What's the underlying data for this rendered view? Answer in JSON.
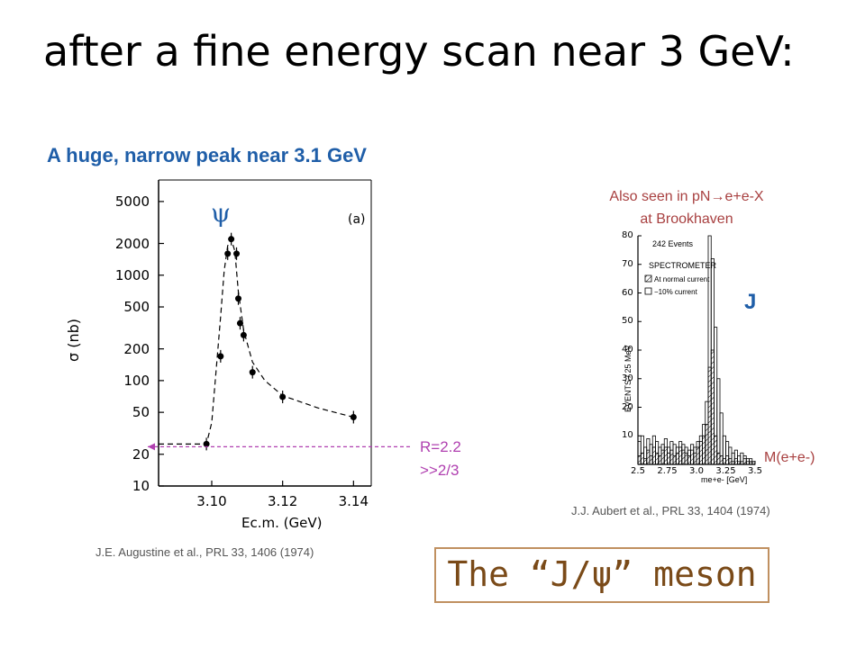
{
  "slide": {
    "title": "after a fine energy scan near 3 GeV:",
    "subtitle": "A huge, narrow peak near 3.1 GeV",
    "psi_symbol": "ψ",
    "panel_tag": "(a)",
    "r_line1": "R=2.2",
    "r_line2": ">>2/3",
    "ref_left": "J.E. Augustine et al., PRL 33, 1406 (1974)",
    "also_seen_line1": "Also seen in pN→e+e-X",
    "also_seen_line2": "at Brookhaven",
    "j_symbol": "J",
    "mee_label": "M(e+e-)",
    "ref_right": "J.J. Aubert et al., PRL 33, 1404 (1974)",
    "meson_label": "The “J/ψ” meson"
  },
  "colors": {
    "subtitle": "#1f5ea8",
    "annotation_pink": "#b040b0",
    "annotation_red": "#a84040",
    "meson_text": "#7a4a18",
    "meson_border": "#c09060"
  },
  "chart_data": [
    {
      "type": "scatter",
      "scale": "log-y",
      "xlabel": "Ec.m. (GeV)",
      "ylabel": "σ (nb)",
      "xlim": [
        3.085,
        3.145
      ],
      "ylim": [
        10,
        8000
      ],
      "x_ticks": [
        "3.10",
        "3.12",
        "3.14"
      ],
      "y_ticks": [
        "5000",
        "2000",
        "1000",
        "500",
        "200",
        "100",
        "50",
        "20",
        "10"
      ],
      "y_tick_values": [
        5000,
        2000,
        1000,
        500,
        200,
        100,
        50,
        20,
        10
      ],
      "series": [
        {
          "x": [
            3.0985,
            3.1025,
            3.1045,
            3.1055,
            3.107,
            3.1075,
            3.108,
            3.109,
            3.1115,
            3.12,
            3.14
          ],
          "y": [
            25,
            170,
            1600,
            2200,
            1600,
            600,
            350,
            270,
            120,
            70,
            45
          ]
        }
      ],
      "curve": {
        "x": [
          3.085,
          3.096,
          3.0985,
          3.1,
          3.101,
          3.1025,
          3.1035,
          3.1045,
          3.1055,
          3.1065,
          3.1075,
          3.109,
          3.1115,
          3.115,
          3.12,
          3.13,
          3.14
        ],
        "y": [
          25,
          25,
          25,
          40,
          100,
          400,
          1100,
          1900,
          2200,
          1700,
          700,
          300,
          150,
          100,
          72,
          55,
          45
        ]
      },
      "reference_line": {
        "y": 25,
        "label": "R=2.2"
      }
    },
    {
      "type": "bar",
      "xlabel": "me+e- [GeV]",
      "ylabel": "EVENTS / 25 MeV",
      "xlim": [
        2.5,
        3.5
      ],
      "ylim": [
        0,
        80
      ],
      "x_ticks": [
        "2.5",
        "2.75",
        "3.0",
        "3.25",
        "3.5"
      ],
      "y_ticks": [
        "80",
        "70",
        "60",
        "50",
        "40",
        "30",
        "20",
        "10"
      ],
      "y_tick_values": [
        80,
        70,
        60,
        50,
        40,
        30,
        20,
        10
      ],
      "annotations": [
        "242 Events",
        "SPECTROMETER",
        "At normal current",
        "−10% current"
      ],
      "series": [
        {
          "name": "At normal current",
          "bin_start": 2.5,
          "bin_width": 0.025,
          "values": [
            3,
            4,
            2,
            5,
            3,
            6,
            4,
            3,
            5,
            6,
            4,
            5,
            3,
            4,
            6,
            5,
            4,
            3,
            5,
            4,
            6,
            8,
            10,
            14,
            34,
            40,
            10,
            4,
            3,
            2,
            3,
            2,
            1,
            2,
            1,
            1,
            2,
            1,
            1,
            1
          ]
        },
        {
          "name": "−10% current",
          "bin_start": 2.5,
          "bin_width": 0.025,
          "values": [
            8,
            10,
            6,
            9,
            7,
            10,
            8,
            6,
            7,
            9,
            6,
            8,
            7,
            6,
            8,
            7,
            6,
            5,
            7,
            6,
            8,
            10,
            14,
            22,
            80,
            72,
            48,
            30,
            18,
            10,
            8,
            6,
            4,
            5,
            3,
            4,
            3,
            2,
            2,
            1
          ]
        }
      ]
    }
  ]
}
